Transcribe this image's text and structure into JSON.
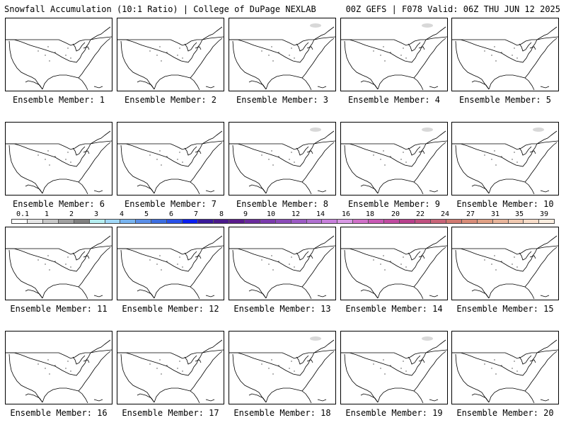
{
  "header": {
    "title_left": "Snowfall Accumulation (10:1 Ratio) | College of DuPage NEXLAB",
    "title_right": "00Z GEFS | F078 Valid: 06Z THU JUN 12 2025"
  },
  "map": {
    "region": "CONUS",
    "contour_color": "#000000",
    "snow_blob_color": "#d8d8d8"
  },
  "panels": [
    {
      "label": "Ensemble Member: 1"
    },
    {
      "label": "Ensemble Member: 2"
    },
    {
      "label": "Ensemble Member: 3"
    },
    {
      "label": "Ensemble Member: 4"
    },
    {
      "label": "Ensemble Member: 5"
    },
    {
      "label": "Ensemble Member: 6"
    },
    {
      "label": "Ensemble Member: 7"
    },
    {
      "label": "Ensemble Member: 8"
    },
    {
      "label": "Ensemble Member: 9"
    },
    {
      "label": "Ensemble Member: 10"
    },
    {
      "label": "Ensemble Member: 11"
    },
    {
      "label": "Ensemble Member: 12"
    },
    {
      "label": "Ensemble Member: 13"
    },
    {
      "label": "Ensemble Member: 14"
    },
    {
      "label": "Ensemble Member: 15"
    },
    {
      "label": "Ensemble Member: 16"
    },
    {
      "label": "Ensemble Member: 17"
    },
    {
      "label": "Ensemble Member: 18"
    },
    {
      "label": "Ensemble Member: 19"
    },
    {
      "label": "Ensemble Member: 20"
    }
  ],
  "legend": {
    "ticks": [
      "0.1",
      "1",
      "2",
      "3",
      "4",
      "5",
      "6",
      "7",
      "8",
      "9",
      "10",
      "12",
      "14",
      "16",
      "18",
      "20",
      "22",
      "24",
      "27",
      "31",
      "35",
      "39"
    ],
    "colors": [
      "#ffffff",
      "#e6e6e6",
      "#c8c8c8",
      "#a0a0a0",
      "#808080",
      "#b4eef0",
      "#a0d8f8",
      "#78b4f0",
      "#5a8ee8",
      "#3c6ee0",
      "#2850e8",
      "#0a1ef0",
      "#3a1a9a",
      "#4a1a8a",
      "#5a1a8c",
      "#6a2a9c",
      "#7a3aac",
      "#8a4ab8",
      "#9c5ac4",
      "#b070d0",
      "#c880dc",
      "#d898e4",
      "#d070c8",
      "#c858b4",
      "#c04aa0",
      "#b8408c",
      "#c05080",
      "#c86478",
      "#d07870",
      "#d88c78",
      "#e0a084",
      "#e8b49a",
      "#f0c8b0",
      "#f8dcc8",
      "#fceee0"
    ]
  }
}
